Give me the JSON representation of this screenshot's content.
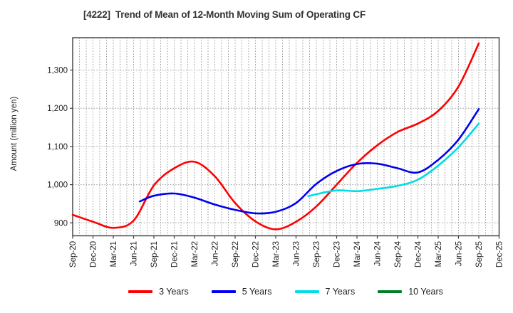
{
  "title": "[4222]  Trend of Mean of 12-Month Moving Sum of Operating CF",
  "chart_data": {
    "type": "line",
    "title": "[4222]  Trend of Mean of 12-Month Moving Sum of Operating CF",
    "xlabel": "",
    "ylabel": "Amount (million yen)",
    "x_categories": [
      "Sep-20",
      "Dec-20",
      "Mar-21",
      "Jun-21",
      "Sep-21",
      "Dec-21",
      "Mar-22",
      "Jun-22",
      "Sep-22",
      "Dec-22",
      "Mar-23",
      "Jun-23",
      "Sep-23",
      "Dec-23",
      "Mar-24",
      "Jun-24",
      "Sep-24",
      "Dec-24",
      "Mar-25",
      "Jun-25",
      "Sep-25",
      "Dec-25"
    ],
    "y_ticks": [
      900,
      1000,
      1100,
      1200,
      1300
    ],
    "y_tick_labels": [
      "900",
      "1,000",
      "1,100",
      "1,200",
      "1,300"
    ],
    "ylim": [
      866,
      1385
    ],
    "grid": {
      "style": "dotted",
      "vertical": "monthly",
      "horizontal": "at-y-ticks",
      "color": "#9a9a9a"
    },
    "legend_position": "bottom",
    "series": [
      {
        "name": "3 Years",
        "color": "#ff0000",
        "points": [
          [
            0,
            921
          ],
          [
            1,
            903
          ],
          [
            2,
            887
          ],
          [
            3,
            906
          ],
          [
            4,
            998
          ],
          [
            5,
            1043
          ],
          [
            6,
            1060
          ],
          [
            7,
            1022
          ],
          [
            8,
            952
          ],
          [
            9,
            904
          ],
          [
            10,
            883
          ],
          [
            11,
            903
          ],
          [
            12,
            943
          ],
          [
            13,
            1000
          ],
          [
            14,
            1057
          ],
          [
            15,
            1103
          ],
          [
            16,
            1138
          ],
          [
            17,
            1160
          ],
          [
            18,
            1193
          ],
          [
            19,
            1257
          ],
          [
            20,
            1370
          ]
        ]
      },
      {
        "name": "5 Years",
        "color": "#0000ee",
        "points": [
          [
            3.3,
            956
          ],
          [
            4,
            971
          ],
          [
            5,
            977
          ],
          [
            6,
            966
          ],
          [
            7,
            948
          ],
          [
            8,
            934
          ],
          [
            9,
            925
          ],
          [
            10,
            929
          ],
          [
            11,
            952
          ],
          [
            12,
            1002
          ],
          [
            13,
            1036
          ],
          [
            14,
            1054
          ],
          [
            15,
            1055
          ],
          [
            16,
            1043
          ],
          [
            17,
            1032
          ],
          [
            18,
            1065
          ],
          [
            19,
            1118
          ],
          [
            20,
            1198
          ]
        ]
      },
      {
        "name": "7 Years",
        "color": "#00dde6",
        "points": [
          [
            11.6,
            970
          ],
          [
            12,
            975
          ],
          [
            13,
            985
          ],
          [
            14,
            983
          ],
          [
            15,
            989
          ],
          [
            16,
            997
          ],
          [
            17,
            1013
          ],
          [
            18,
            1050
          ],
          [
            19,
            1098
          ],
          [
            20,
            1160
          ]
        ]
      },
      {
        "name": "10 Years",
        "color": "#008024",
        "points": []
      }
    ]
  }
}
